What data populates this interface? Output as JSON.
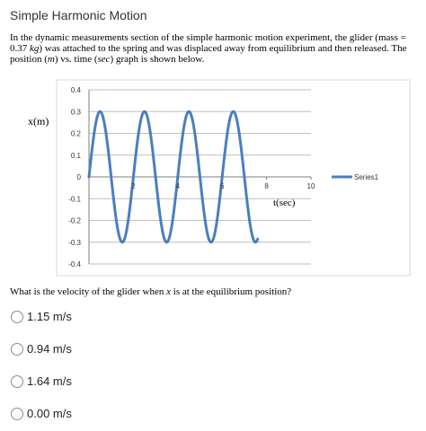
{
  "page": {
    "title": "Simple Harmonic Motion"
  },
  "question": {
    "part1": "In the dynamic measurements section of the simple harmonic motion experiment, the glider (mass = 0.37 ",
    "mass_unit": "kg",
    "part2": ") was attached to the spring and was displaced away from equilibrium and then released.  The position (",
    "pos_unit": "m",
    "part3": ") vs. time (",
    "time_unit": "sec",
    "part4": ") graph is shown below."
  },
  "chart_data": {
    "type": "line",
    "ylabel": "x(m)",
    "xlabel": "t(sec)",
    "ylim": [
      -0.4,
      0.4
    ],
    "xlim": [
      0,
      10
    ],
    "y_ticks": [
      "0.4",
      "0.3",
      "0.2",
      "0.1",
      "0",
      "-0.1",
      "-0.2",
      "-0.3",
      "-0.4"
    ],
    "x_ticks": [
      "2",
      "4",
      "6",
      "8",
      "10"
    ],
    "grid": true,
    "legend_position": "right",
    "series": [
      {
        "name": "Series1",
        "color": "#4a7fbe",
        "amplitude": 0.3,
        "period": 2.0,
        "t_end": 7.6,
        "x": [
          0,
          0.25,
          0.5,
          0.75,
          1.0,
          1.25,
          1.5,
          1.75,
          2.0,
          2.25,
          2.5,
          2.75,
          3.0,
          3.25,
          3.5,
          3.75,
          4.0,
          4.25,
          4.5,
          4.75,
          5.0,
          5.25,
          5.5,
          5.75,
          6.0,
          6.25,
          6.5,
          6.75,
          7.0,
          7.25,
          7.5,
          7.6
        ],
        "y": [
          0.0,
          0.21,
          0.3,
          0.21,
          0.0,
          -0.21,
          -0.3,
          -0.21,
          0.0,
          0.21,
          0.3,
          0.21,
          0.0,
          -0.21,
          -0.3,
          -0.21,
          0.0,
          0.21,
          0.3,
          0.21,
          0.0,
          -0.21,
          -0.3,
          -0.21,
          0.0,
          0.21,
          0.3,
          0.21,
          0.0,
          -0.21,
          -0.3,
          -0.28
        ]
      }
    ]
  },
  "prompt": {
    "part1": "What is the velocity of the glider when ",
    "var": "x",
    "part2": " is at the equilibrium position?"
  },
  "options": [
    {
      "label": "1.15 m/s"
    },
    {
      "label": "0.94 m/s"
    },
    {
      "label": "1.64 m/s"
    },
    {
      "label": "0.00 m/s"
    }
  ]
}
